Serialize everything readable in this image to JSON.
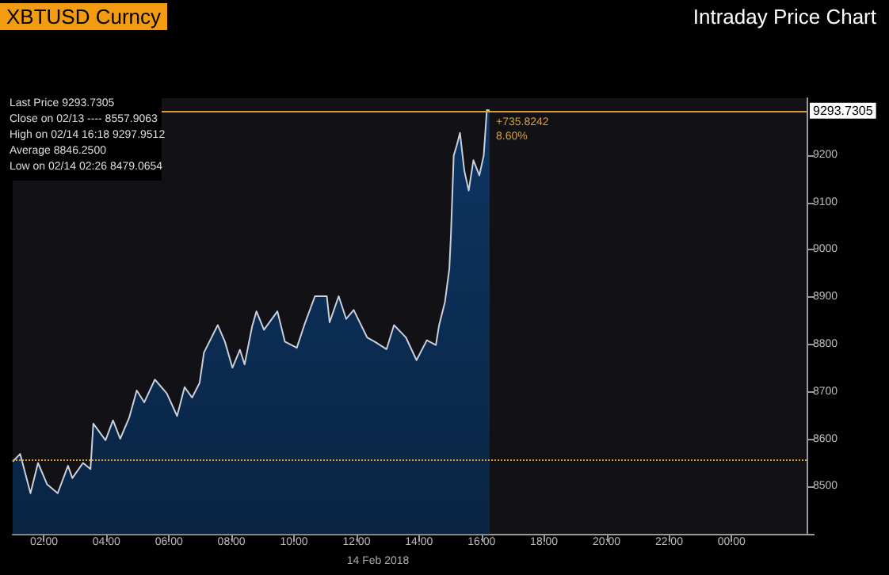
{
  "chart_data": {
    "type": "area",
    "title": "XBTUSD Curncy",
    "subtitle": "Intraday Price Chart",
    "xlabel": "14 Feb 2018",
    "annotations": [
      "Last Price 9293.7305",
      "Close on 02/13 ---- 8557.9063",
      "High on 02/14 16:18 9297.9512",
      "Average 8846.2500",
      "Low on 02/14 02:26 8479.0654",
      {
        "text": "+735.8242\n8.60%",
        "x": 16.26,
        "y": 9293.73
      }
    ],
    "x": [
      1.0,
      1.24,
      1.57,
      1.81,
      2.1,
      2.44,
      2.77,
      2.91,
      3.25,
      3.49,
      3.58,
      3.97,
      4.21,
      4.44,
      4.73,
      4.97,
      5.21,
      5.55,
      5.93,
      6.26,
      6.5,
      6.74,
      6.98,
      7.12,
      7.56,
      7.79,
      8.03,
      8.27,
      8.42,
      8.66,
      8.8,
      9.04,
      9.47,
      9.71,
      10.09,
      10.33,
      10.67,
      11.05,
      11.14,
      11.43,
      11.67,
      11.91,
      12.34,
      12.58,
      12.96,
      13.2,
      13.58,
      13.92,
      14.25,
      14.54,
      14.64,
      14.83,
      14.97,
      15.02,
      15.11,
      15.21,
      15.31,
      15.45,
      15.59,
      15.74,
      15.93,
      16.07,
      16.17,
      16.26
    ],
    "series": [
      {
        "color": "#c8d0dc",
        "values": [
          8553,
          8569,
          8486,
          8550,
          8505,
          8486,
          8544,
          8518,
          8550,
          8537,
          8633,
          8598,
          8640,
          8601,
          8646,
          8703,
          8678,
          8726,
          8697,
          8649,
          8710,
          8688,
          8719,
          8783,
          8841,
          8806,
          8751,
          8789,
          8758,
          8838,
          8870,
          8831,
          8870,
          8806,
          8793,
          8841,
          8902,
          8902,
          8847,
          8902,
          8854,
          8873,
          8815,
          8806,
          8790,
          8841,
          8815,
          8767,
          8809,
          8799,
          8840,
          8890,
          8960,
          9030,
          9199,
          9221,
          9247,
          9167,
          9125,
          9189,
          9157,
          9199,
          9295,
          9294
        ]
      }
    ],
    "xlim": [
      1,
      26.4
    ],
    "xticks": [
      {
        "value": 2,
        "label": "02:00"
      },
      {
        "value": 4,
        "label": "04:00"
      },
      {
        "value": 6,
        "label": "06:00"
      },
      {
        "value": 8,
        "label": "08:00"
      },
      {
        "value": 10,
        "label": "10:00"
      },
      {
        "value": 12,
        "label": "12:00"
      },
      {
        "value": 14,
        "label": "14:00"
      },
      {
        "value": 16,
        "label": "16:00"
      },
      {
        "value": 18,
        "label": "18:00"
      },
      {
        "value": 20,
        "label": "20:00"
      },
      {
        "value": 22,
        "label": "22:00"
      },
      {
        "value": 24,
        "label": "00:00"
      }
    ],
    "ylim": [
      8400,
      9320
    ],
    "yticks": [
      {
        "value": 8400,
        "label": null
      },
      8500,
      8600,
      8700,
      8800,
      8900,
      9000,
      9100,
      9200
    ],
    "ref_lines": [
      {
        "axis": "y",
        "value": 8557.9063,
        "color": "#d9a030",
        "line_style": "dotted"
      },
      {
        "axis": "y",
        "value": 9293.7305,
        "label": "9293.7305",
        "color": "#d9a030",
        "line_style": "solid"
      }
    ],
    "grid": false,
    "marker": "none"
  }
}
